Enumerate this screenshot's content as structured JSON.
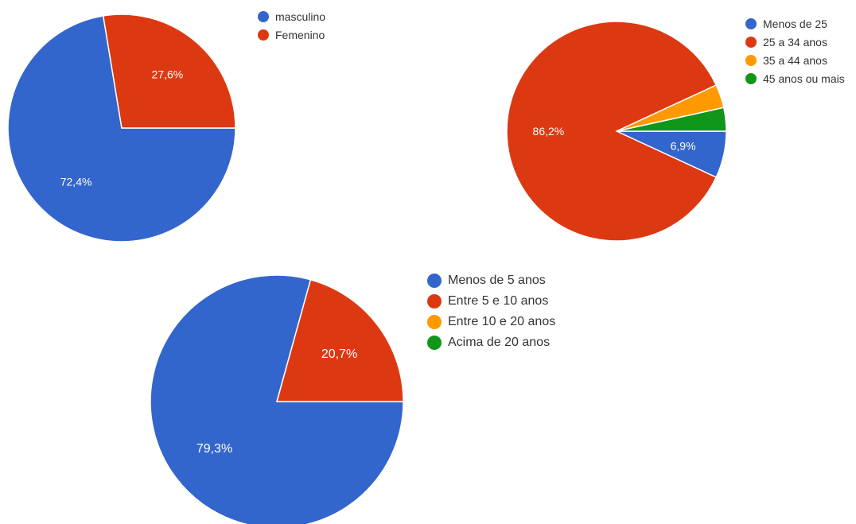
{
  "chart_data": [
    {
      "type": "pie",
      "categories": [
        "masculino",
        "Femenino"
      ],
      "values": [
        72.4,
        27.6
      ],
      "labels": [
        "72,4%",
        "27,6%"
      ],
      "colors": [
        "#3366cc",
        "#dc3912"
      ],
      "legend": "right"
    },
    {
      "type": "pie",
      "categories": [
        "Menos de 25",
        "25 a 34 anos",
        "35 a 44 anos",
        "45 anos ou mais"
      ],
      "values": [
        6.9,
        86.2,
        3.45,
        3.45
      ],
      "labels": [
        "6,9%",
        "86,2%",
        "",
        ""
      ],
      "colors": [
        "#3366cc",
        "#dc3912",
        "#ff9900",
        "#109618"
      ],
      "legend": "top-right"
    },
    {
      "type": "pie",
      "categories": [
        "Menos de 5 anos",
        "Entre 5 e 10 anos",
        "Entre 10 e 20 anos",
        "Acima de 20 anos"
      ],
      "values": [
        79.3,
        20.7,
        0,
        0
      ],
      "labels": [
        "79,3%",
        "20,7%",
        "",
        ""
      ],
      "colors": [
        "#3366cc",
        "#dc3912",
        "#ff9900",
        "#109618"
      ],
      "legend": "right"
    }
  ]
}
